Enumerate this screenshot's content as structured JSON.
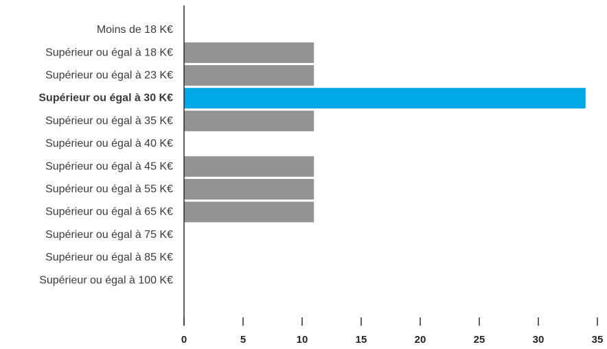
{
  "chart_data": {
    "type": "bar",
    "orientation": "horizontal",
    "categories": [
      "Moins de 18 K€",
      "Supérieur ou égal à 18 K€",
      "Supérieur ou égal à 23 K€",
      "Supérieur ou égal à 30 K€",
      "Supérieur ou égal à 35 K€",
      "Supérieur ou égal à 40 K€",
      "Supérieur ou égal à 45 K€",
      "Supérieur ou égal à 55 K€",
      "Supérieur ou égal à 65 K€",
      "Supérieur ou égal à 75 K€",
      "Supérieur ou égal à 85 K€",
      "Supérieur ou égal à 100 K€"
    ],
    "values": [
      0,
      11,
      11,
      34,
      11,
      0,
      11,
      11,
      11,
      0,
      0,
      0
    ],
    "highlight_index": 3,
    "xlim": [
      0,
      35
    ],
    "xticks": [
      "0",
      "5",
      "10",
      "15",
      "20",
      "25",
      "30",
      "35"
    ],
    "title": "",
    "xlabel": "",
    "ylabel": "",
    "grid": false,
    "colors": {
      "bar": "#939396",
      "highlight": "#00a8e6",
      "highlight_text": "#00a8e6",
      "axis": "#2a2a2a"
    }
  }
}
